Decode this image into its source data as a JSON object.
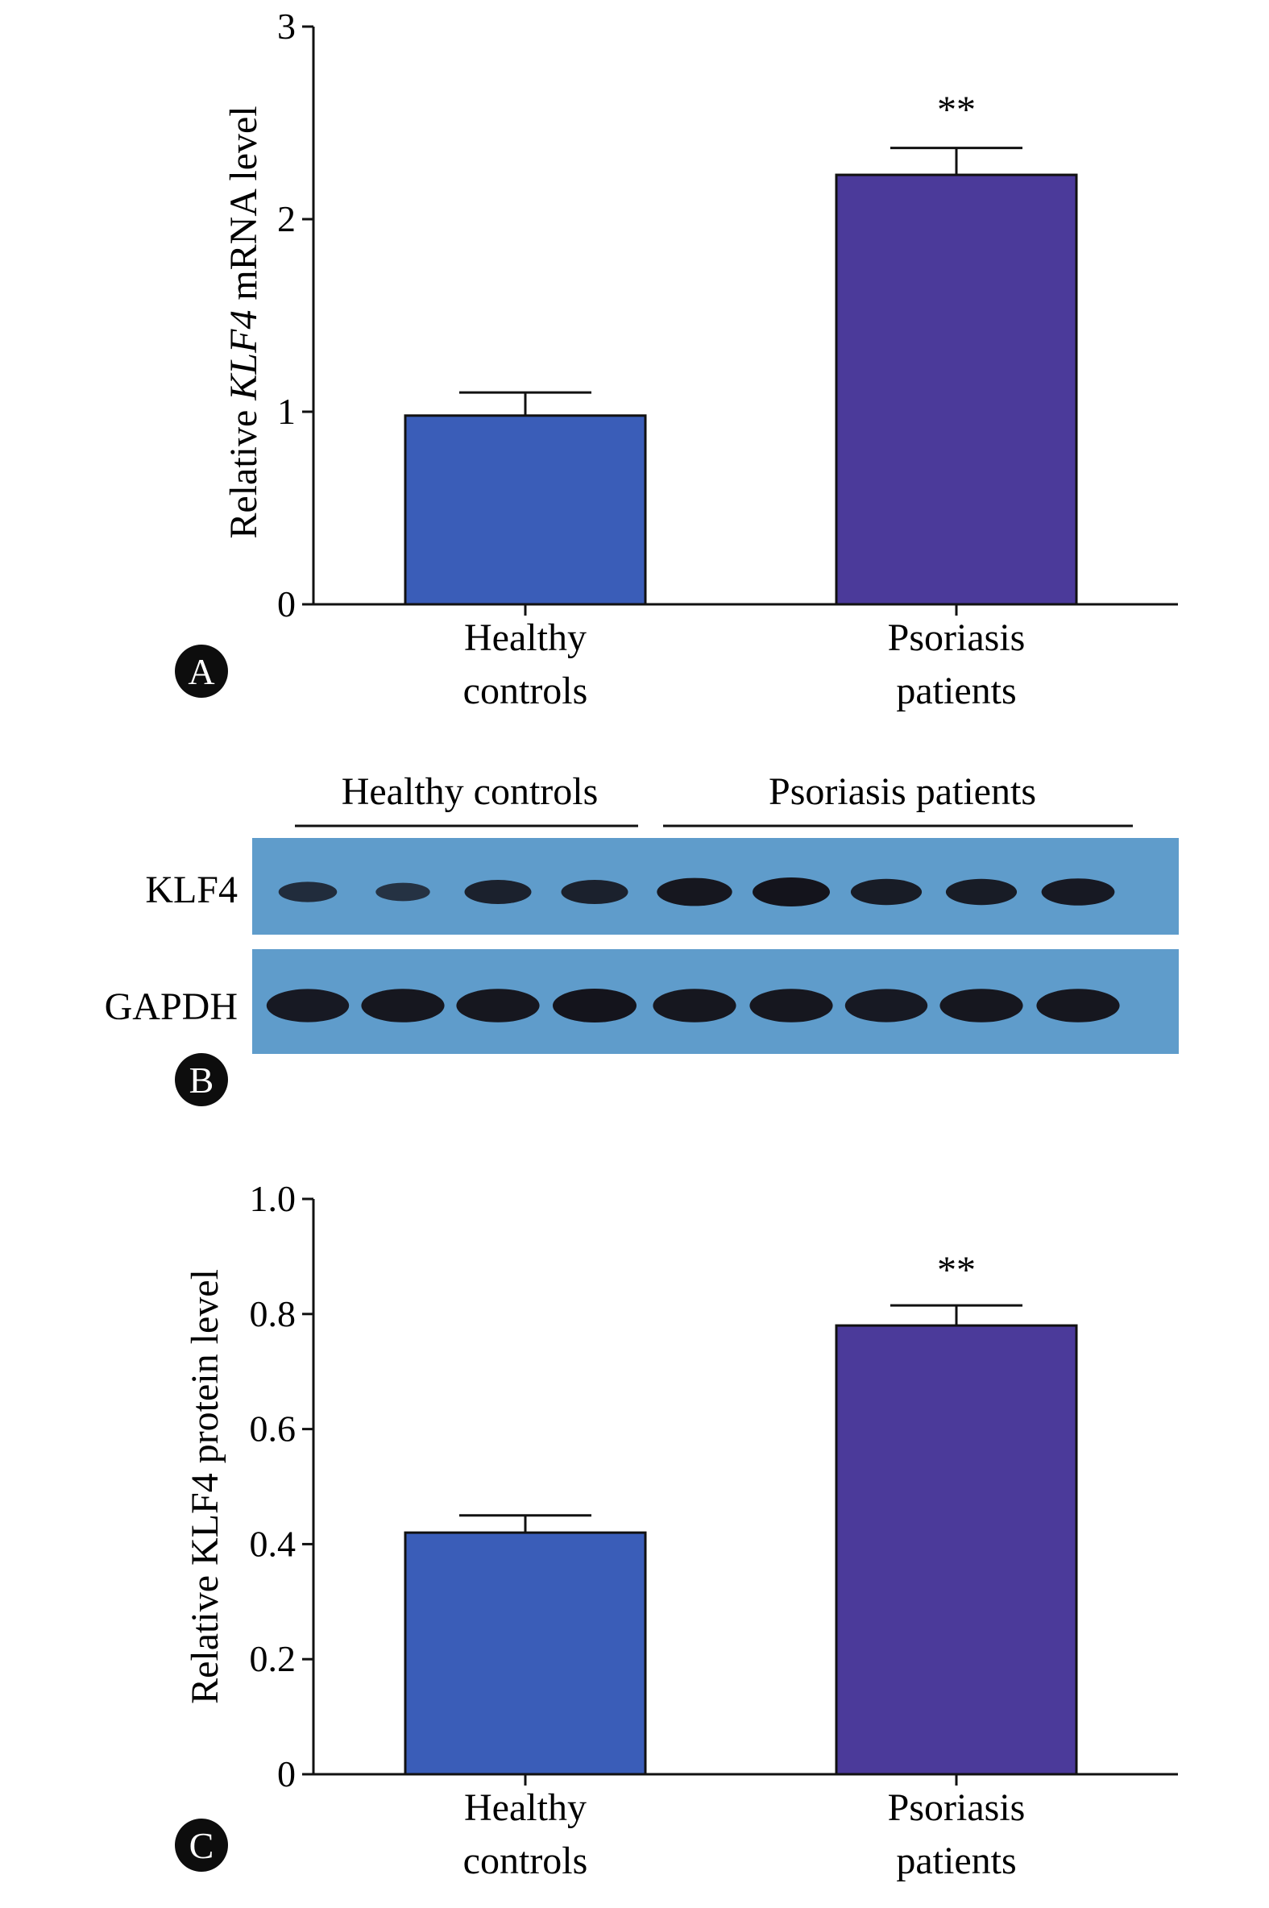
{
  "colors": {
    "bar_control": "#3A5DB8",
    "bar_patient": "#4B3A9A",
    "blot_bg": "#5f9ccb",
    "band": "#14141c",
    "axis": "#111111",
    "panel_circle": "#0d0d0d"
  },
  "chart_data": [
    {
      "panel": "A",
      "type": "bar",
      "categories": [
        {
          "line1": "Healthy",
          "line2": "controls"
        },
        {
          "line1": "Psoriasis",
          "line2": "patients"
        }
      ],
      "values": [
        0.98,
        2.23
      ],
      "errors": [
        0.12,
        0.14
      ],
      "significance": [
        "",
        "**"
      ],
      "ylabel_pre": "Relative ",
      "ylabel_italic": "KLF4",
      "ylabel_post": " mRNA level",
      "ylim": [
        0,
        3
      ],
      "yticks": [
        0,
        1,
        2,
        3
      ],
      "ytick_labels": [
        "0",
        "1",
        "2",
        "3"
      ],
      "grid": false
    },
    {
      "panel": "C",
      "type": "bar",
      "categories": [
        {
          "line1": "Healthy",
          "line2": "controls"
        },
        {
          "line1": "Psoriasis",
          "line2": "patients"
        }
      ],
      "values": [
        0.42,
        0.78
      ],
      "errors": [
        0.03,
        0.035
      ],
      "significance": [
        "",
        "**"
      ],
      "ylabel_pre": "Relative KLF4 protein level",
      "ylabel_italic": "",
      "ylabel_post": "",
      "ylim": [
        0,
        1.0
      ],
      "yticks": [
        0,
        0.2,
        0.4,
        0.6,
        0.8,
        1.0
      ],
      "ytick_labels": [
        "0",
        "0.2",
        "0.4",
        "0.6",
        "0.8",
        "1.0"
      ],
      "grid": false
    }
  ],
  "western_blot": {
    "panel": "B",
    "groups": [
      "Healthy controls",
      "Psoriasis patients"
    ],
    "rows": [
      {
        "label": "KLF4",
        "intensity": [
          0.55,
          0.45,
          0.75,
          0.75,
          0.95,
          1.0,
          0.85,
          0.85,
          0.9
        ]
      },
      {
        "label": "GAPDH",
        "intensity": [
          0.9,
          0.95,
          0.95,
          1.0,
          0.95,
          0.95,
          0.9,
          0.95,
          0.95
        ]
      }
    ]
  }
}
